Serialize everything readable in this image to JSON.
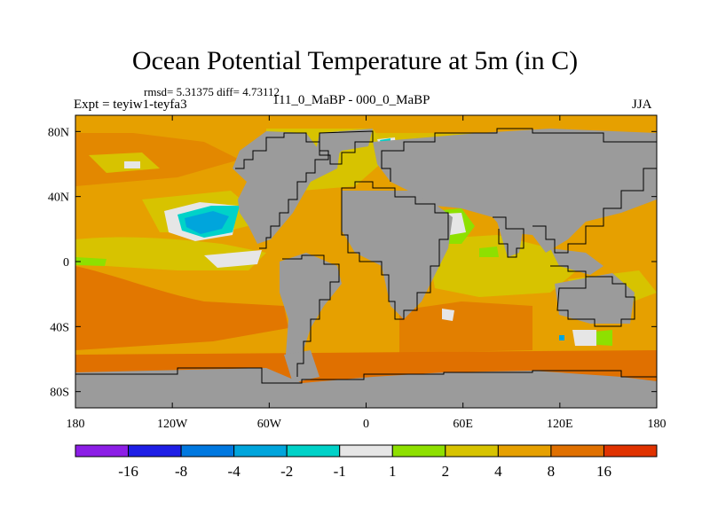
{
  "title": "Ocean Potential Temperature at 5m (in C)",
  "stats": "rmsd= 5.31375 diff= 4.73112",
  "experiment": "Expt = teyiw1-teyfa3",
  "difference": "111_0_MaBP - 000_0_MaBP",
  "season": "JJA",
  "colors": {
    "land": "#9b9b9b",
    "background_field": "#e6a000",
    "warm_orange": "#e07000",
    "yellow": "#d7c300",
    "green": "#8ee000",
    "white": "#e6e6e6",
    "cyan": "#00d2c8",
    "light_blue": "#00a5dc",
    "blue": "#0078e0",
    "dark_blue": "#1e1ee6",
    "purple": "#8c1ee6",
    "red": "#e03200"
  },
  "map": {
    "lon_range": [
      -180,
      180
    ],
    "lat_range": [
      -90,
      90
    ],
    "x_ticks": [
      {
        "lon": -180,
        "label": "180"
      },
      {
        "lon": -120,
        "label": "120W"
      },
      {
        "lon": -60,
        "label": "60W"
      },
      {
        "lon": 0,
        "label": "0"
      },
      {
        "lon": 60,
        "label": "60E"
      },
      {
        "lon": 120,
        "label": "120E"
      },
      {
        "lon": 180,
        "label": "180"
      }
    ],
    "y_ticks": [
      {
        "lat": 80,
        "label": "80N"
      },
      {
        "lat": 40,
        "label": "40N"
      },
      {
        "lat": 0,
        "label": "0"
      },
      {
        "lat": -40,
        "label": "40S"
      },
      {
        "lat": -80,
        "label": "80S"
      }
    ]
  },
  "colorbar": {
    "colors": [
      "#8c1ee6",
      "#1e1ee6",
      "#0078e0",
      "#00a5dc",
      "#00d2c8",
      "#e6e6e6",
      "#8ee000",
      "#d7c300",
      "#e6a000",
      "#e07000",
      "#e03200"
    ],
    "labels": [
      "-16",
      "-8",
      "-4",
      "-2",
      "-1",
      "1",
      "2",
      "4",
      "8",
      "16"
    ]
  }
}
